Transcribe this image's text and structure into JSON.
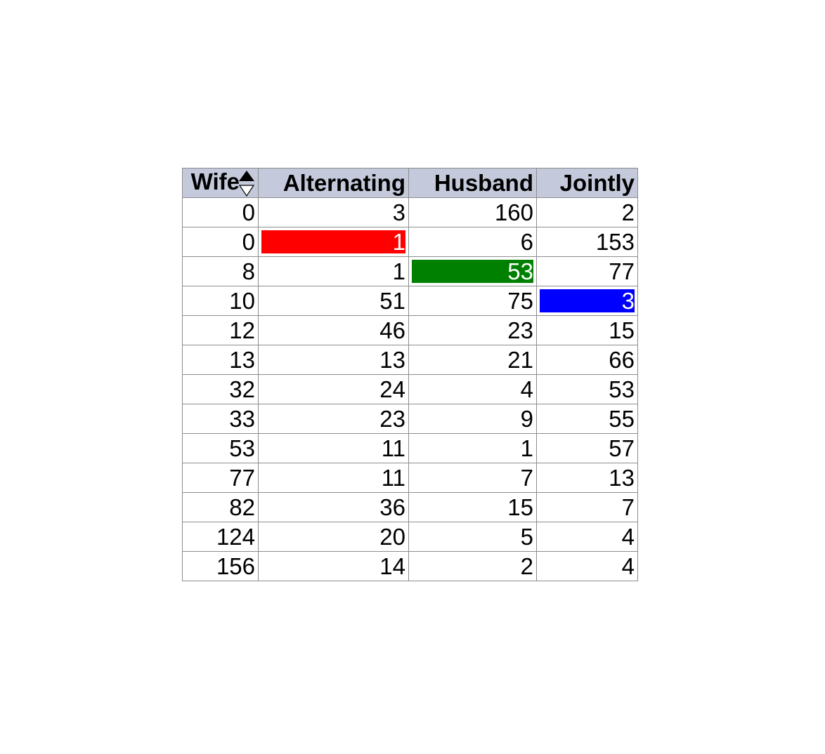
{
  "table": {
    "columns": [
      {
        "key": "wife",
        "label": "Wife"
      },
      {
        "key": "alternating",
        "label": "Alternating"
      },
      {
        "key": "husband",
        "label": "Husband"
      },
      {
        "key": "jointly",
        "label": "Jointly"
      }
    ],
    "sort": {
      "column": "Wife",
      "direction": "ascending"
    },
    "rows": [
      [
        "0",
        "3",
        "160",
        "2"
      ],
      [
        "0",
        "1",
        "6",
        "153"
      ],
      [
        "8",
        "1",
        "53",
        "77"
      ],
      [
        "10",
        "51",
        "75",
        "3"
      ],
      [
        "12",
        "46",
        "23",
        "15"
      ],
      [
        "13",
        "13",
        "21",
        "66"
      ],
      [
        "32",
        "24",
        "4",
        "53"
      ],
      [
        "33",
        "23",
        "9",
        "55"
      ],
      [
        "53",
        "11",
        "1",
        "57"
      ],
      [
        "77",
        "11",
        "7",
        "13"
      ],
      [
        "82",
        "36",
        "15",
        "7"
      ],
      [
        "124",
        "20",
        "5",
        "4"
      ],
      [
        "156",
        "14",
        "2",
        "4"
      ]
    ],
    "highlights": [
      {
        "row": 1,
        "col": 1,
        "color": "#ff0000",
        "text_color": "#ffffff"
      },
      {
        "row": 2,
        "col": 2,
        "color": "#008000",
        "text_color": "#ffffff"
      },
      {
        "row": 3,
        "col": 3,
        "color": "#0000ff",
        "text_color": "#ffffff"
      }
    ],
    "colors": {
      "header_bg": "#c4cadb",
      "border": "#8c8c8c"
    },
    "icons": {
      "sort": "sort-ascending-icon"
    }
  }
}
